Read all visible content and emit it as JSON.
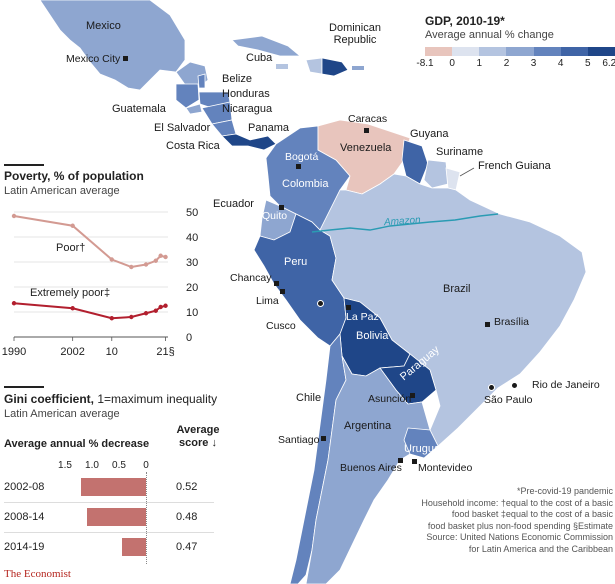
{
  "colors": {
    "neg": "#e8c5bd",
    "g0": "#dde3ef",
    "g1": "#b4c4e0",
    "g2": "#8ea6d0",
    "g3": "#6383bd",
    "g4": "#3f64a6",
    "g5": "#1f4688",
    "water": "#ffffff",
    "amazon": "#2a9bb3",
    "poor": "#d39a92",
    "extreme": "#b21f2e",
    "bar": "#c3726f"
  },
  "gdp_legend": {
    "title": "GDP, 2010-19*",
    "subtitle": "Average annual % change",
    "ticks": [
      "-8.1",
      "0",
      "1",
      "2",
      "3",
      "4",
      "5",
      "6.2"
    ]
  },
  "countries": {
    "mexico": "Mexico",
    "cuba": "Cuba",
    "dominican_republic": "Dominican Republic",
    "belize": "Belize",
    "honduras": "Honduras",
    "guatemala": "Guatemala",
    "nicaragua": "Nicaragua",
    "el_salvador": "El Salvador",
    "panama": "Panama",
    "costa_rica": "Costa Rica",
    "venezuela": "Venezuela",
    "guyana": "Guyana",
    "suriname": "Suriname",
    "french_guiana": "French Guiana",
    "colombia": "Colombia",
    "ecuador": "Ecuador",
    "peru": "Peru",
    "brazil": "Brazil",
    "bolivia": "Bolivia",
    "paraguay": "Paraguay",
    "chile": "Chile",
    "argentina": "Argentina",
    "uruguay": "Uruguay"
  },
  "cities": {
    "mexico_city": "Mexico City",
    "caracas": "Caracas",
    "bogota": "Bogotá",
    "quito": "Quito",
    "chancay": "Chancay",
    "lima": "Lima",
    "cusco": "Cusco",
    "la_paz": "La Paz",
    "brasilia": "Brasília",
    "rio": "Rio de Janeiro",
    "sao_paulo": "São Paulo",
    "asuncion": "Asunción",
    "santiago": "Santiago",
    "buenos_aires": "Buenos Aires",
    "montevideo": "Montevideo"
  },
  "river": "Amazon",
  "poverty": {
    "title": "Poverty, % of population",
    "subtitle": "Latin American average",
    "poor_label": "Poor†",
    "extreme_label": "Extremely poor‡",
    "x_ticks": [
      "1990",
      "2002",
      "10",
      "21§"
    ],
    "y_ticks": [
      "50",
      "40",
      "30",
      "20",
      "10",
      "0"
    ],
    "chart_data": {
      "type": "line",
      "title": "Poverty, % of population",
      "xlabel": "",
      "ylabel": "%",
      "ylim": [
        0,
        50
      ],
      "series": [
        {
          "name": "Poor",
          "x": [
            1990,
            2002,
            2010,
            2014,
            2017,
            2019,
            2020,
            2021
          ],
          "values": [
            48.4,
            44.5,
            31.0,
            28.0,
            29.0,
            30.5,
            32.5,
            32.0
          ]
        },
        {
          "name": "Extremely poor",
          "x": [
            1990,
            2002,
            2010,
            2014,
            2017,
            2019,
            2020,
            2021
          ],
          "values": [
            13.5,
            11.5,
            7.5,
            8.0,
            9.5,
            10.5,
            12.0,
            12.5
          ]
        }
      ]
    }
  },
  "gini": {
    "title_bold": "Gini coefficient,",
    "title_rest": " 1=maximum inequality",
    "subtitle": "Latin American average",
    "decrease_header": "Average annual % decrease",
    "score_header": "Average score ↓",
    "axis_ticks": [
      "1.5",
      "1.0",
      "0.5",
      "0"
    ],
    "rows": [
      {
        "period": "2002-08",
        "decrease": 1.2,
        "score": "0.52"
      },
      {
        "period": "2008-14",
        "decrease": 1.1,
        "score": "0.48"
      },
      {
        "period": "2014-19",
        "decrease": 0.45,
        "score": "0.47"
      }
    ]
  },
  "notes": {
    "line1": "*Pre-covid-19 pandemic",
    "line2": "Household income: †equal to the cost of a basic",
    "line3": "food basket   ‡equal to the cost of a basic",
    "line4": "food basket plus non-food spending   §Estimate",
    "line5": "Source: United Nations Economic Commission",
    "line6": "for Latin America and the Caribbean"
  },
  "brand": "The Economist"
}
